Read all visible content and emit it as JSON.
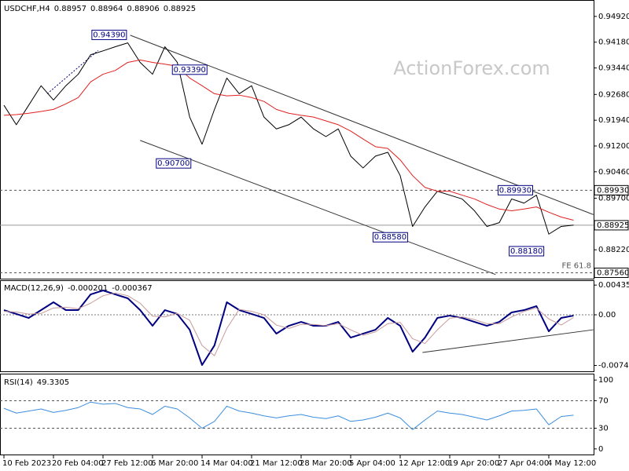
{
  "chart_data": [
    {
      "type": "line",
      "title": "USDCHF,H4",
      "ohlc": [
        0.88957,
        0.88964,
        0.88906,
        0.88925
      ],
      "watermark": "ActionForex.com",
      "categories": [
        "10 Feb 2023",
        null,
        null,
        null,
        "20 Feb 04:00",
        null,
        null,
        null,
        "27 Feb 12:00",
        null,
        null,
        null,
        "6 Mar 20:00",
        null,
        null,
        null,
        "14 Mar 04:00",
        null,
        null,
        null,
        "21 Mar 12:00",
        null,
        null,
        null,
        "28 Mar 20:00",
        null,
        null,
        null,
        "5 Apr 04:00",
        null,
        null,
        null,
        "12 Apr 12:00",
        null,
        null,
        null,
        "19 Apr 20:00",
        null,
        null,
        null,
        "27 Apr 04:00",
        null,
        null,
        null,
        "4 May 12:00",
        null,
        null
      ],
      "series": [
        {
          "color": "#000000",
          "values": [
            0.9237,
            0.9181,
            0.9237,
            0.9293,
            0.9252,
            0.9293,
            0.9326,
            0.9382,
            0.9393,
            0.9405,
            0.9416,
            0.936,
            0.9326,
            0.9405,
            0.936,
            0.9203,
            0.9125,
            0.9225,
            0.9315,
            0.927,
            0.9293,
            0.9203,
            0.9169,
            0.9181,
            0.9203,
            0.9169,
            0.9147,
            0.9169,
            0.9091,
            0.9057,
            0.9091,
            0.9102,
            0.9035,
            0.8889,
            0.8945,
            0.899,
            0.8979,
            0.8968,
            0.8934,
            0.8889,
            0.89,
            0.8968,
            0.8956,
            0.8979,
            0.8867,
            0.8889,
            0.8893
          ]
        },
        {
          "color": "#e02020",
          "values": [
            0.9208,
            0.921,
            0.9214,
            0.9219,
            0.9225,
            0.9241,
            0.9259,
            0.9304,
            0.9326,
            0.9337,
            0.936,
            0.9367,
            0.936,
            0.9355,
            0.9349,
            0.9315,
            0.9293,
            0.927,
            0.9264,
            0.9266,
            0.9259,
            0.9248,
            0.9225,
            0.9214,
            0.9208,
            0.9203,
            0.9192,
            0.9181,
            0.9163,
            0.914,
            0.9118,
            0.9113,
            0.908,
            0.9035,
            0.9001,
            0.899,
            0.899,
            0.8979,
            0.8968,
            0.8952,
            0.8939,
            0.8934,
            0.8939,
            0.8945,
            0.893,
            0.8916,
            0.8907
          ]
        }
      ],
      "ylim": [
        0.87391,
        0.95346
      ],
      "yticks": [
        {
          "value": 0.9492,
          "label": "0.94920"
        },
        {
          "value": 0.9418,
          "label": "0.94180"
        },
        {
          "value": 0.9344,
          "label": "0.93440"
        },
        {
          "value": 0.9268,
          "label": "0.92680"
        },
        {
          "value": 0.9194,
          "label": "0.91940"
        },
        {
          "value": 0.912,
          "label": "0.91200"
        },
        {
          "value": 0.9046,
          "label": "0.90460"
        },
        {
          "value": 0.897,
          "label": "0.89700"
        },
        {
          "value": 0.8822,
          "label": "0.88220"
        }
      ],
      "levels": [
        {
          "value": 0.8993,
          "label": "0.89930",
          "style": "dashed"
        },
        {
          "value": 0.88925,
          "label": "0.88925",
          "style": "solid"
        },
        {
          "value": 0.8756,
          "label": "0.87560",
          "style": "dashed",
          "note": "FE 61.8"
        }
      ],
      "trendlines": [
        {
          "x": [
            10.2,
            47.6
          ],
          "y": [
            0.9438,
            0.8923
          ],
          "style": "solid"
        },
        {
          "x": [
            11.0,
            39.7
          ],
          "y": [
            0.9136,
            0.8751
          ],
          "style": "solid"
        },
        {
          "x": [
            3.5,
            7.6
          ],
          "y": [
            0.927,
            0.9394
          ],
          "style": "dotted"
        }
      ],
      "point_labels": [
        {
          "x": 8.5,
          "value": 0.9439,
          "label": "0.94390"
        },
        {
          "x": 15.0,
          "value": 0.9339,
          "label": "0.93390"
        },
        {
          "x": 13.7,
          "value": 0.907,
          "label": "0.90700"
        },
        {
          "x": 31.2,
          "value": 0.8858,
          "label": "0.88580"
        },
        {
          "x": 41.3,
          "value": 0.8993,
          "label": "0.89930"
        },
        {
          "x": 42.2,
          "value": 0.8818,
          "label": "0.88180"
        }
      ]
    },
    {
      "type": "line",
      "title": "MACD(12,26,9)",
      "current": [
        -0.000201,
        -0.000367
      ],
      "zero_line": true,
      "series": [
        {
          "color": "#000080",
          "bold": true,
          "values": [
            0.00069,
            0.00012,
            -0.00046,
            0.00069,
            0.00184,
            0.00069,
            0.00069,
            0.00299,
            0.00357,
            0.00299,
            0.00242,
            0.00069,
            -0.00161,
            0.00069,
            0.00012,
            -0.00219,
            -0.00736,
            -0.00449,
            0.00184,
            0.00069,
            0.00012,
            -0.00046,
            -0.00276,
            -0.00161,
            -0.00104,
            -0.00161,
            -0.00161,
            -0.00104,
            -0.00334,
            -0.00276,
            -0.00219,
            -0.00046,
            -0.00161,
            -0.00541,
            -0.00334,
            -0.00046,
            -0.00012,
            -0.00046,
            -0.00104,
            -0.00161,
            -0.00104,
            0.00035,
            0.00069,
            0.00127,
            -0.00242,
            -0.00046,
            -0.00012
          ]
        },
        {
          "color": "#c89a9a",
          "values": [
            0.0005,
            0.0004,
            0.0001,
            0.0002,
            0.001,
            0.0011,
            0.0009,
            0.0017,
            0.0028,
            0.0032,
            0.0028,
            0.0017,
            -0.0002,
            -0.0003,
            0.0002,
            -0.0008,
            -0.0045,
            -0.006,
            -0.002,
            0.0008,
            0.0005,
            0.0,
            -0.0015,
            -0.002,
            -0.0014,
            -0.0014,
            -0.0016,
            -0.0013,
            -0.0022,
            -0.003,
            -0.0025,
            -0.0013,
            -0.0011,
            -0.0035,
            -0.0042,
            -0.0022,
            -0.0005,
            -0.0003,
            -0.0007,
            -0.0013,
            -0.0013,
            -0.0003,
            0.0005,
            0.001,
            -0.0006,
            -0.0015,
            -0.0004
          ]
        }
      ],
      "ylim": [
        -0.00828,
        0.00495
      ],
      "yticks": [
        0.004354,
        {
          "value": 0,
          "label": "0.00"
        },
        -0.007417
      ],
      "trendlines": [
        {
          "x": [
            33.8,
            47.6
          ],
          "y": [
            -0.00552,
            -0.00219
          ],
          "style": "solid"
        }
      ]
    },
    {
      "type": "line",
      "title": "RSI(14)",
      "current": [
        49.3305
      ],
      "series": [
        {
          "color": "#3c8ede",
          "values": [
            59,
            52,
            55,
            58,
            53,
            56,
            60,
            68,
            65,
            66,
            60,
            58,
            50,
            62,
            58,
            45,
            30,
            40,
            62,
            55,
            52,
            48,
            45,
            48,
            50,
            46,
            44,
            48,
            40,
            42,
            46,
            52,
            45,
            28,
            42,
            55,
            52,
            50,
            46,
            42,
            48,
            55,
            56,
            58,
            35,
            47,
            49
          ]
        }
      ],
      "ylim": [
        -7,
        107
      ],
      "yticks": [
        100,
        70,
        30,
        0
      ],
      "levels": [
        {
          "value": 70,
          "style": "dashed"
        },
        {
          "value": 30,
          "style": "dashed"
        }
      ]
    }
  ]
}
